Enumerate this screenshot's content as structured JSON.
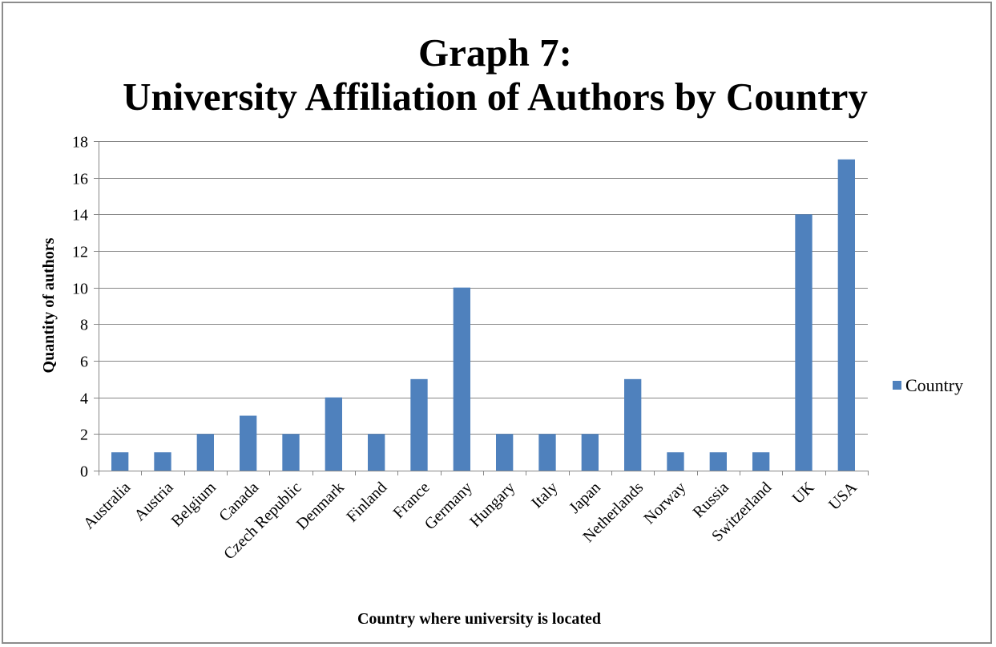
{
  "chart_data": {
    "type": "bar",
    "title_line1": "Graph 7:",
    "title_line2": "University Affiliation of Authors by Country",
    "xlabel": "Country where university is located",
    "ylabel": "Quantity of authors",
    "categories": [
      "Australia",
      "Austria",
      "Belgium",
      "Canada",
      "Czech Republic",
      "Denmark",
      "Finland",
      "France",
      "Germany",
      "Hungary",
      "Italy",
      "Japan",
      "Netherlands",
      "Norway",
      "Russia",
      "Switzerland",
      "UK",
      "USA"
    ],
    "series": [
      {
        "name": "Country",
        "values": [
          1,
          1,
          2,
          3,
          2,
          4,
          2,
          5,
          10,
          2,
          2,
          2,
          5,
          1,
          1,
          1,
          14,
          17
        ],
        "color": "#4f81bd"
      }
    ],
    "ylim": [
      0,
      18
    ],
    "yticks": [
      0,
      2,
      4,
      6,
      8,
      10,
      12,
      14,
      16,
      18
    ],
    "grid": true,
    "gridline_color": "#868686",
    "legend_position": "right"
  }
}
